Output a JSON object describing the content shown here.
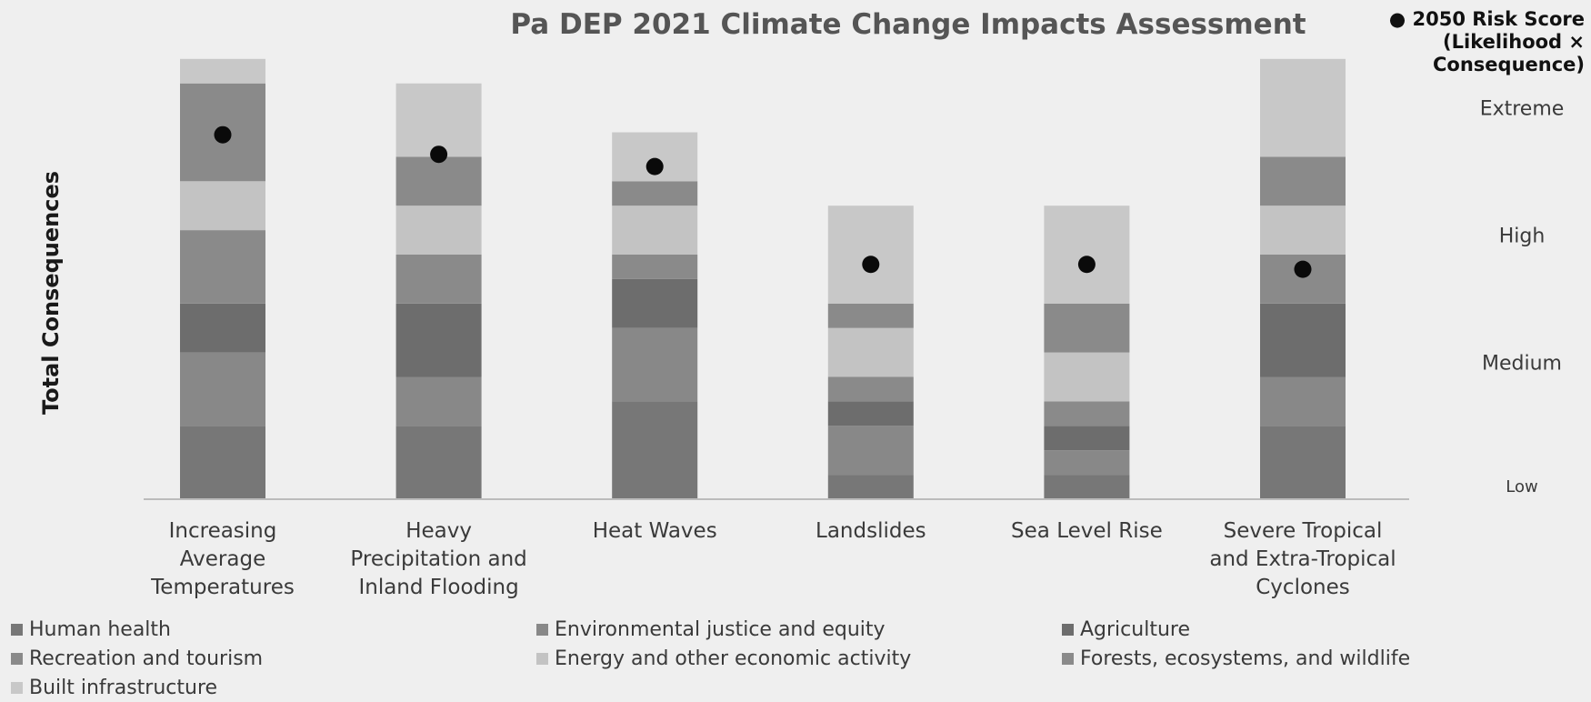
{
  "chart_data": {
    "type": "bar",
    "stacked": true,
    "title": "Pa DEP 2021 Climate Change Impacts Assessment",
    "ylabel": "Total Consequences",
    "xlabel": "",
    "ylim": [
      0,
      18
    ],
    "categories": [
      [
        "Increasing",
        "Average",
        "Temperatures"
      ],
      [
        "Heavy",
        "Precipitation and",
        "Inland Flooding"
      ],
      [
        "Heat Waves"
      ],
      [
        "Landslides"
      ],
      [
        "Sea Level Rise"
      ],
      [
        "Severe Tropical",
        "and Extra-Tropical",
        "Cyclones"
      ]
    ],
    "series": [
      {
        "name": "Human health",
        "color": "#777777",
        "values": [
          3,
          3,
          4,
          1,
          1,
          3
        ]
      },
      {
        "name": "Environmental justice and equity",
        "color": "#888888",
        "values": [
          3,
          2,
          3,
          2,
          1,
          2
        ]
      },
      {
        "name": "Agriculture",
        "color": "#6d6d6d",
        "values": [
          2,
          3,
          2,
          1,
          1,
          3
        ]
      },
      {
        "name": "Recreation and tourism",
        "color": "#8a8a8a",
        "values": [
          3,
          2,
          1,
          1,
          1,
          2
        ]
      },
      {
        "name": "Energy and other economic activity",
        "color": "#c3c3c3",
        "values": [
          2,
          2,
          2,
          2,
          2,
          2
        ]
      },
      {
        "name": "Forests, ecosystems, and wildlife",
        "color": "#8a8a8a",
        "values": [
          4,
          2,
          1,
          1,
          2,
          2
        ]
      },
      {
        "name": "Built infrastructure",
        "color": "#c8c8c8",
        "values": [
          1,
          3,
          2,
          4,
          4,
          4
        ]
      }
    ],
    "risk_score": {
      "label": "2050 Risk Score (Likelihood × Consequence)",
      "label_lines": [
        "● 2050 Risk Score",
        "(Likelihood ×",
        "Consequence)"
      ],
      "values": [
        14.9,
        14.1,
        13.6,
        9.6,
        9.6,
        9.4
      ]
    },
    "risk_levels": [
      {
        "label": "Extreme",
        "value": 16.0
      },
      {
        "label": "High",
        "value": 10.8
      },
      {
        "label": "Medium",
        "value": 5.6
      },
      {
        "label": "Low",
        "value": 0.6
      }
    ],
    "grid": false,
    "legend_position": "bottom"
  }
}
